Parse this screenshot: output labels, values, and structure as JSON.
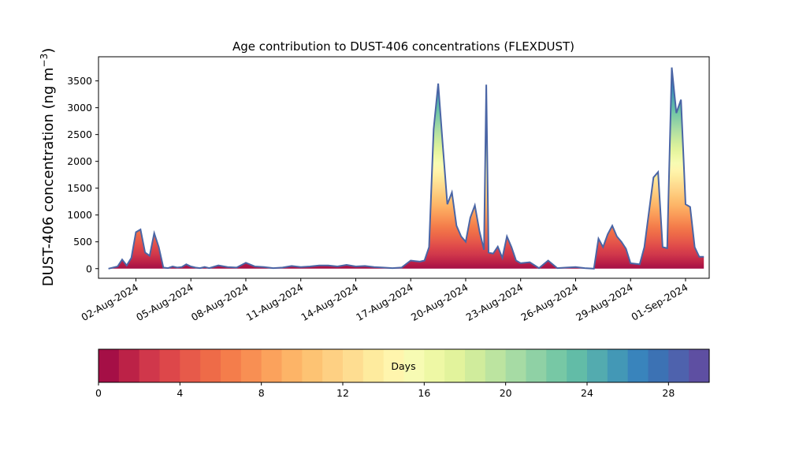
{
  "chart_data": {
    "type": "area",
    "title": "Age contribution to DUST-406 concentrations (FLEXDUST)",
    "ylabel": "DUST-406 concentration (ng m",
    "ylabel_sup": "−3",
    "ylabel_close": ")",
    "xlabel": "",
    "ylim": [
      -180,
      3950
    ],
    "yticks": [
      0,
      500,
      1000,
      1500,
      2000,
      2500,
      3000,
      3500
    ],
    "xlim": [
      "2024-07-30T23:00",
      "2024-09-02T07:00"
    ],
    "xticks": [
      "2024-08-02",
      "2024-08-05",
      "2024-08-08",
      "2024-08-11",
      "2024-08-14",
      "2024-08-17",
      "2024-08-20",
      "2024-08-23",
      "2024-08-26",
      "2024-08-29",
      "2024-09-01"
    ],
    "xtick_labels": [
      "02-Aug-2024",
      "05-Aug-2024",
      "08-Aug-2024",
      "11-Aug-2024",
      "14-Aug-2024",
      "17-Aug-2024",
      "20-Aug-2024",
      "23-Aug-2024",
      "26-Aug-2024",
      "29-Aug-2024",
      "01-Sep-2024"
    ],
    "grid": false,
    "series": [
      {
        "x": [
          "2024-07-31T12:00",
          "2024-08-01T00:00",
          "2024-08-01T06:00",
          "2024-08-01T12:00",
          "2024-08-01T18:00",
          "2024-08-02T00:00",
          "2024-08-02T06:00",
          "2024-08-02T12:00",
          "2024-08-02T18:00",
          "2024-08-03T00:00",
          "2024-08-03T06:00",
          "2024-08-03T12:00",
          "2024-08-03T18:00",
          "2024-08-04T00:00",
          "2024-08-04T06:00",
          "2024-08-04T12:00",
          "2024-08-04T18:00",
          "2024-08-05T00:00",
          "2024-08-05T06:00",
          "2024-08-05T12:00",
          "2024-08-05T18:00",
          "2024-08-06T00:00",
          "2024-08-06T12:00",
          "2024-08-07T00:00",
          "2024-08-07T12:00",
          "2024-08-08T00:00",
          "2024-08-08T12:00",
          "2024-08-09T00:00",
          "2024-08-09T12:00",
          "2024-08-10T00:00",
          "2024-08-10T12:00",
          "2024-08-11T00:00",
          "2024-08-11T12:00",
          "2024-08-12T00:00",
          "2024-08-12T12:00",
          "2024-08-13T00:00",
          "2024-08-13T12:00",
          "2024-08-14T00:00",
          "2024-08-14T12:00",
          "2024-08-15T00:00",
          "2024-08-15T12:00",
          "2024-08-16T00:00",
          "2024-08-16T12:00",
          "2024-08-17T00:00",
          "2024-08-17T06:00",
          "2024-08-17T12:00",
          "2024-08-17T18:00",
          "2024-08-18T00:00",
          "2024-08-18T06:00",
          "2024-08-18T12:00",
          "2024-08-18T18:00",
          "2024-08-19T00:00",
          "2024-08-19T06:00",
          "2024-08-19T12:00",
          "2024-08-19T18:00",
          "2024-08-20T00:00",
          "2024-08-20T06:00",
          "2024-08-20T12:00",
          "2024-08-20T18:00",
          "2024-08-21T00:00",
          "2024-08-21T03:00",
          "2024-08-21T06:00",
          "2024-08-21T12:00",
          "2024-08-21T18:00",
          "2024-08-22T00:00",
          "2024-08-22T06:00",
          "2024-08-22T12:00",
          "2024-08-22T18:00",
          "2024-08-23T00:00",
          "2024-08-23T12:00",
          "2024-08-24T00:00",
          "2024-08-24T06:00",
          "2024-08-24T12:00",
          "2024-08-25T00:00",
          "2024-08-25T12:00",
          "2024-08-26T00:00",
          "2024-08-26T12:00",
          "2024-08-27T00:00",
          "2024-08-27T06:00",
          "2024-08-27T12:00",
          "2024-08-27T18:00",
          "2024-08-28T00:00",
          "2024-08-28T06:00",
          "2024-08-28T12:00",
          "2024-08-28T18:00",
          "2024-08-29T00:00",
          "2024-08-29T12:00",
          "2024-08-29T18:00",
          "2024-08-30T00:00",
          "2024-08-30T06:00",
          "2024-08-30T12:00",
          "2024-08-30T18:00",
          "2024-08-31T00:00",
          "2024-08-31T06:00",
          "2024-08-31T12:00",
          "2024-08-31T18:00",
          "2024-09-01T00:00",
          "2024-09-01T06:00",
          "2024-09-01T12:00",
          "2024-09-01T18:00",
          "2024-09-02T00:00"
        ],
        "values": [
          0,
          40,
          170,
          60,
          200,
          680,
          730,
          300,
          240,
          660,
          400,
          20,
          10,
          40,
          20,
          30,
          80,
          40,
          20,
          10,
          30,
          10,
          60,
          30,
          20,
          110,
          40,
          30,
          10,
          20,
          50,
          30,
          40,
          60,
          60,
          40,
          70,
          40,
          50,
          30,
          20,
          10,
          20,
          150,
          140,
          130,
          150,
          400,
          2600,
          3450,
          2300,
          1200,
          1420,
          800,
          600,
          500,
          950,
          1180,
          700,
          350,
          3430,
          300,
          280,
          410,
          200,
          600,
          400,
          150,
          100,
          120,
          10,
          80,
          150,
          10,
          20,
          30,
          10,
          0,
          560,
          400,
          640,
          800,
          600,
          500,
          370,
          100,
          80,
          400,
          1050,
          1700,
          1800,
          400,
          380,
          3750,
          2900,
          3150,
          1200,
          1150,
          400,
          220,
          220
        ]
      }
    ],
    "colorbar": {
      "label": "Days",
      "min": 0,
      "max": 30,
      "ticks": [
        0,
        4,
        8,
        12,
        16,
        20,
        24,
        28
      ],
      "colors": [
        "#a50f46",
        "#bc2247",
        "#d0374b",
        "#dd474a",
        "#e75a4a",
        "#ee6b48",
        "#f47d4b",
        "#f88f53",
        "#fba25c",
        "#fdb467",
        "#fdc373",
        "#fed083",
        "#fedd91",
        "#feeb9e",
        "#fff5ad",
        "#f7fbb3",
        "#eef8a5",
        "#e2f39c",
        "#d0ec9c",
        "#bce4a0",
        "#a6dba4",
        "#8fd1a5",
        "#77c8a5",
        "#62bca7",
        "#53ab af",
        "#4398b6",
        "#3984bc",
        "#3c72b4",
        "#4e62ad",
        "#5e4fa2"
      ]
    },
    "line_color": "#4a65a5"
  }
}
